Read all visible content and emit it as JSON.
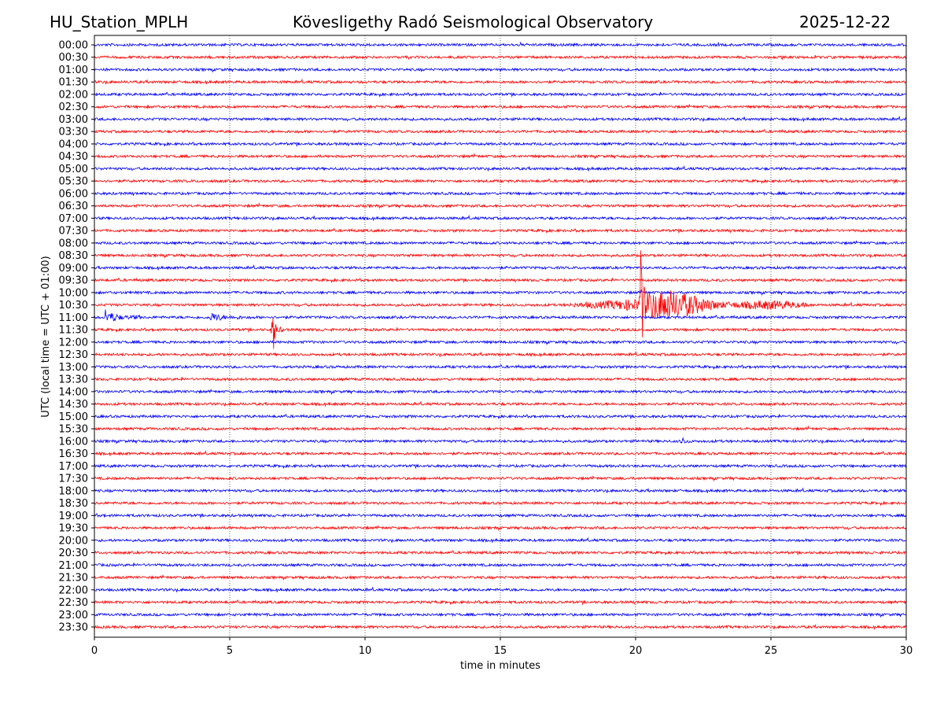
{
  "header": {
    "station": "HU_Station_MPLH",
    "observatory": "Kövesligethy Radó Seismological Observatory",
    "date": "2025-12-22"
  },
  "chart_data": {
    "type": "line",
    "subtype": "helicorder",
    "title": "Kövesligethy Radó Seismological Observatory",
    "xlabel": "time in minutes",
    "ylabel": "UTC (local time = UTC + 01:00)",
    "xlim": [
      0,
      30
    ],
    "xticks": [
      0,
      5,
      10,
      15,
      20,
      25,
      30
    ],
    "grid": "vertical dotted at 5-minute intervals",
    "colors": {
      "even": "#0000ff",
      "odd": "#ff0000"
    },
    "rows": [
      "00:00",
      "00:30",
      "01:00",
      "01:30",
      "02:00",
      "02:30",
      "03:00",
      "03:30",
      "04:00",
      "04:30",
      "05:00",
      "05:30",
      "06:00",
      "06:30",
      "07:00",
      "07:30",
      "08:00",
      "08:30",
      "09:00",
      "09:30",
      "10:00",
      "10:30",
      "11:00",
      "11:30",
      "12:00",
      "12:30",
      "13:00",
      "13:30",
      "14:00",
      "14:30",
      "15:00",
      "15:30",
      "16:00",
      "16:30",
      "17:00",
      "17:30",
      "18:00",
      "18:30",
      "19:00",
      "19:30",
      "20:00",
      "20:30",
      "21:00",
      "21:30",
      "22:00",
      "22:30",
      "23:00",
      "23:30"
    ],
    "events": [
      {
        "row": "10:30",
        "start_min": 16.5,
        "peak_min": 20.2,
        "end_min": 26.5,
        "peak_amplitude_rows": 5.5,
        "coda_amplitude_rows": 1.3
      },
      {
        "row": "11:00",
        "start_min": 0.0,
        "peak_min": 0.4,
        "end_min": 1.8,
        "peak_amplitude_rows": 0.5,
        "coda_amplitude_rows": 0.3
      },
      {
        "row": "11:00",
        "start_min": 3.8,
        "peak_min": 4.3,
        "end_min": 5.5,
        "peak_amplitude_rows": 0.35,
        "coda_amplitude_rows": 0.2
      },
      {
        "row": "11:30",
        "start_min": 6.3,
        "peak_min": 6.6,
        "end_min": 7.0,
        "peak_amplitude_rows": 1.9,
        "coda_amplitude_rows": 0.4
      },
      {
        "row": "16:00",
        "start_min": 21.5,
        "peak_min": 21.7,
        "end_min": 22.0,
        "peak_amplitude_rows": 0.25,
        "coda_amplitude_rows": 0.15
      }
    ]
  }
}
